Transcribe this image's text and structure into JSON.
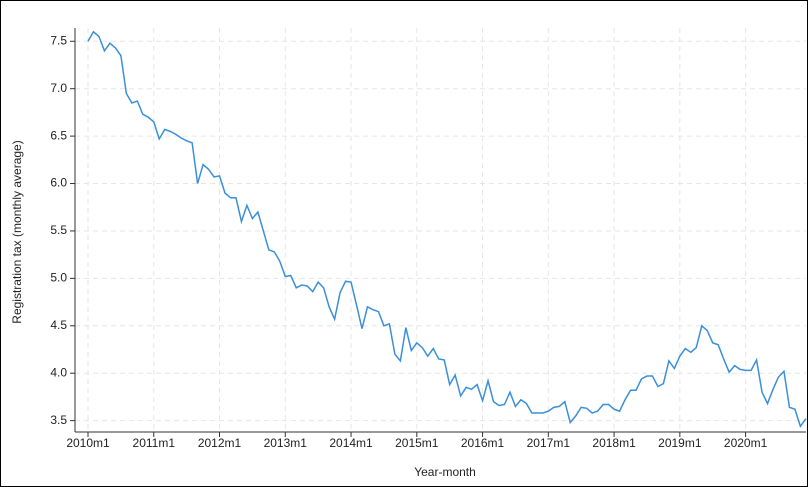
{
  "chart_data": {
    "type": "line",
    "x_label": "Year-month",
    "y_label": "Registration tax (monthly average)",
    "color": "#3a8fdb",
    "grid": true,
    "categories": [
      "2010m1",
      null,
      null,
      null,
      null,
      null,
      null,
      null,
      null,
      null,
      null,
      null,
      "2011m1",
      null,
      null,
      null,
      null,
      null,
      null,
      null,
      null,
      null,
      null,
      null,
      "2012m1",
      null,
      null,
      null,
      null,
      null,
      null,
      null,
      null,
      null,
      null,
      null,
      "2013m1",
      null,
      null,
      null,
      null,
      null,
      null,
      null,
      null,
      null,
      null,
      null,
      "2014m1",
      null,
      null,
      null,
      null,
      null,
      null,
      null,
      null,
      null,
      null,
      null,
      "2015m1",
      null,
      null,
      null,
      null,
      null,
      null,
      null,
      null,
      null,
      null,
      null,
      "2016m1",
      null,
      null,
      null,
      null,
      null,
      null,
      null,
      null,
      null,
      null,
      null,
      "2017m1",
      null,
      null,
      null,
      null,
      null,
      null,
      null,
      null,
      null,
      null,
      null,
      "2018m1",
      null,
      null,
      null,
      null,
      null,
      null,
      null,
      null,
      null,
      null,
      null,
      "2019m1",
      null,
      null,
      null,
      null,
      null,
      null,
      null,
      null,
      null,
      null,
      null,
      "2020m1",
      null,
      null,
      null,
      null,
      null,
      null,
      null,
      null,
      null,
      null,
      null
    ],
    "values": [
      7.5,
      7.6,
      7.55,
      7.4,
      7.48,
      7.43,
      7.35,
      6.95,
      6.85,
      6.87,
      6.73,
      6.7,
      6.65,
      6.47,
      6.57,
      6.55,
      6.52,
      6.48,
      6.45,
      6.43,
      6.0,
      6.2,
      6.15,
      6.07,
      6.08,
      5.9,
      5.85,
      5.85,
      5.6,
      5.77,
      5.63,
      5.7,
      5.5,
      5.3,
      5.28,
      5.18,
      5.02,
      5.03,
      4.9,
      4.93,
      4.92,
      4.86,
      4.96,
      4.9,
      4.7,
      4.57,
      4.85,
      4.97,
      4.96,
      4.72,
      4.47,
      4.7,
      4.67,
      4.65,
      4.5,
      4.52,
      4.2,
      4.13,
      4.48,
      4.24,
      4.32,
      4.27,
      4.18,
      4.26,
      4.15,
      4.14,
      3.88,
      3.98,
      3.76,
      3.85,
      3.83,
      3.88,
      3.71,
      3.92,
      3.7,
      3.66,
      3.67,
      3.8,
      3.65,
      3.72,
      3.68,
      3.58,
      3.58,
      3.58,
      3.6,
      3.64,
      3.65,
      3.7,
      3.48,
      3.55,
      3.64,
      3.63,
      3.58,
      3.6,
      3.67,
      3.67,
      3.62,
      3.6,
      3.72,
      3.82,
      3.82,
      3.94,
      3.97,
      3.97,
      3.86,
      3.89,
      4.13,
      4.05,
      4.18,
      4.26,
      4.22,
      4.27,
      4.5,
      4.45,
      4.32,
      4.3,
      4.15,
      4.01,
      4.08,
      4.04,
      4.03,
      4.03,
      4.14,
      3.8,
      3.68,
      3.83,
      3.96,
      4.02,
      3.64,
      3.62,
      3.44,
      3.52
    ],
    "ylim": [
      3.38,
      7.64
    ],
    "yticks": [
      3.5,
      {
        "value": 4,
        "label": "4.0"
      },
      4.5,
      {
        "value": 5,
        "label": "5.0"
      },
      5.5,
      {
        "value": 6,
        "label": "6.0"
      },
      6.5,
      {
        "value": 7,
        "label": "7.0"
      },
      7.5
    ]
  }
}
